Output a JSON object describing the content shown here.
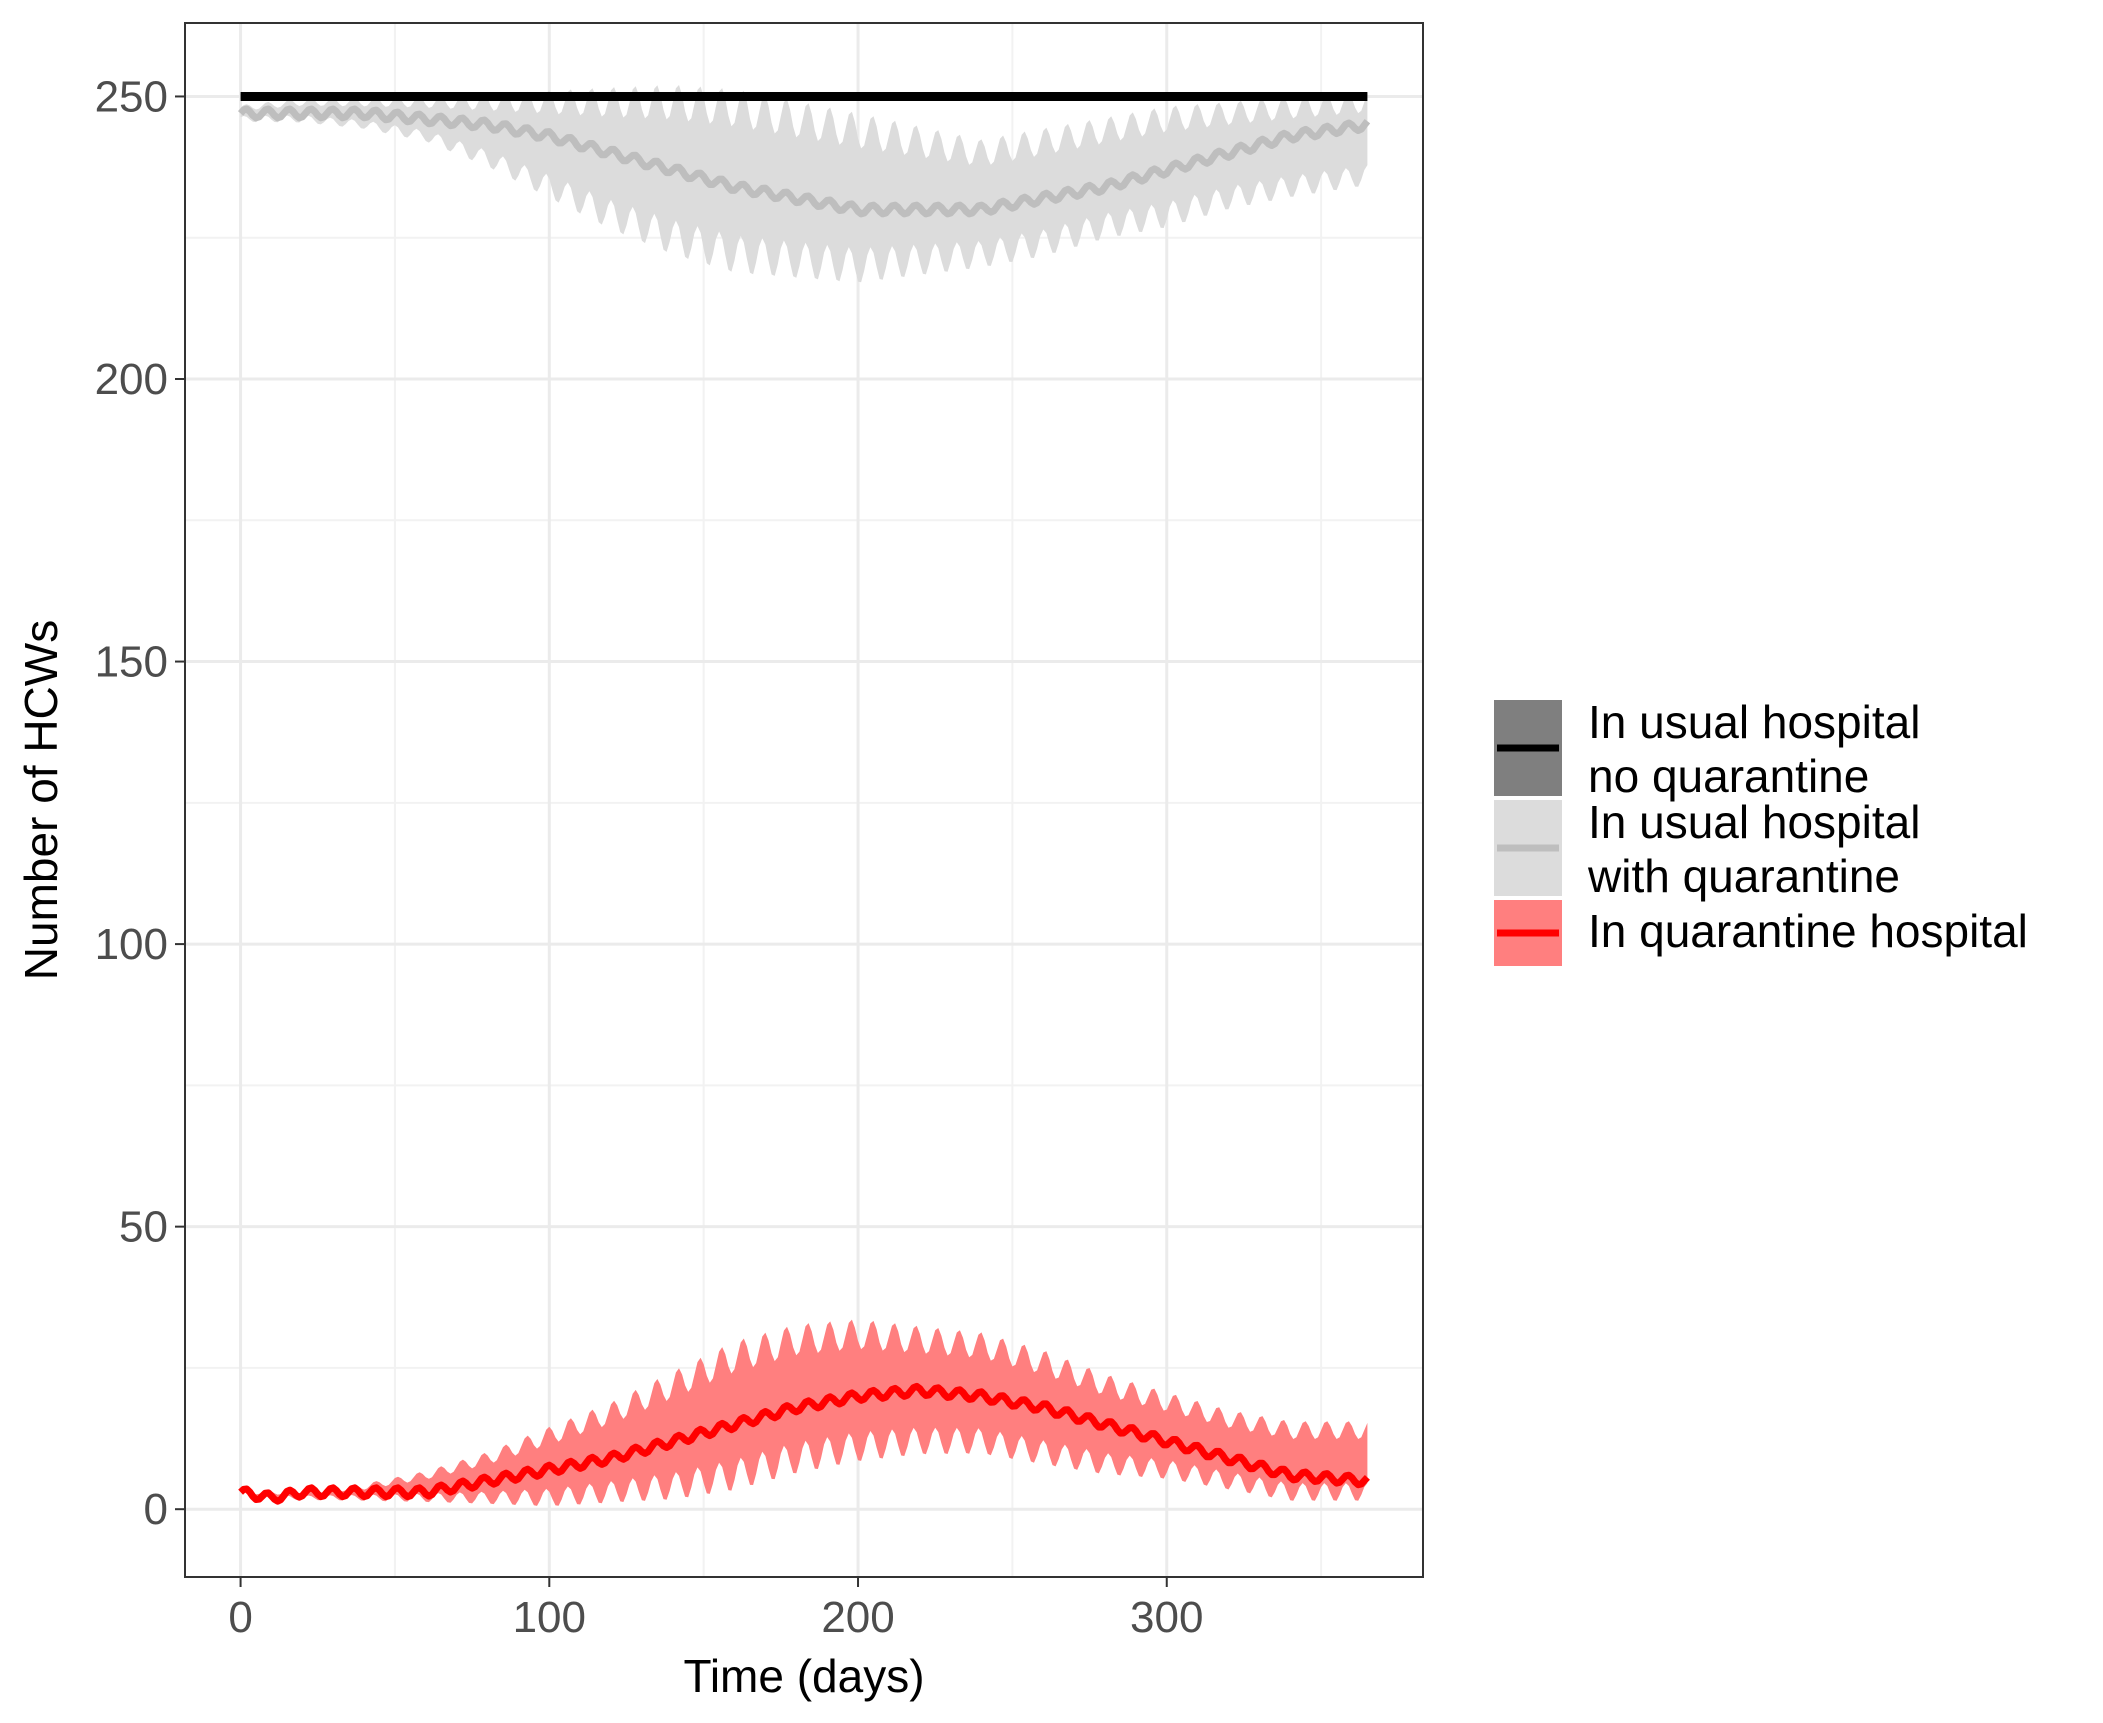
{
  "chart_data": {
    "type": "line",
    "title": "",
    "xlabel": "Time (days)",
    "ylabel": "Number of HCWs",
    "xlim": [
      -18,
      383
    ],
    "ylim": [
      -12,
      263
    ],
    "x_ticks": [
      0,
      100,
      200,
      300
    ],
    "y_ticks": [
      0,
      50,
      100,
      150,
      200,
      250
    ],
    "x_tick_labels": [
      "0",
      "100",
      "200",
      "300"
    ],
    "y_tick_labels": [
      "0",
      "50",
      "100",
      "150",
      "200",
      "250"
    ],
    "grid": true,
    "legend_position": "right",
    "series": [
      {
        "name": "In usual hospital\nno quarantine",
        "line_color": "#000000",
        "ribbon_color": "#7f7f7f",
        "x": [
          0,
          50,
          100,
          150,
          200,
          250,
          300,
          365
        ],
        "y": [
          250,
          250,
          250,
          250,
          250,
          250,
          250,
          250
        ],
        "lower": [
          249.5,
          249.5,
          249.5,
          249.5,
          249.5,
          249.5,
          249.5,
          249.5
        ],
        "upper": [
          250.5,
          250.5,
          250.5,
          250.5,
          250.5,
          250.5,
          250.5,
          250.5
        ]
      },
      {
        "name": "In usual hospital\nwith quarantine",
        "line_color": "#bebebe",
        "ribbon_color": "#dcdcdc",
        "x": [
          0,
          20,
          40,
          60,
          80,
          100,
          120,
          140,
          160,
          180,
          200,
          220,
          240,
          260,
          280,
          300,
          320,
          340,
          365
        ],
        "y": [
          247,
          247,
          247,
          246,
          245,
          243,
          240,
          237,
          234,
          232,
          230,
          230,
          230,
          232,
          234,
          237,
          240,
          243,
          245
        ],
        "lower": [
          246,
          246,
          245,
          243,
          239,
          234,
          229,
          225,
          222,
          221,
          220,
          221,
          222,
          224,
          227,
          229,
          232,
          234,
          236
        ],
        "upper": [
          248,
          249,
          249,
          249,
          249,
          249,
          249,
          249,
          248,
          246,
          244,
          242,
          240,
          242,
          244,
          246,
          247,
          248,
          249
        ]
      },
      {
        "name": "In quarantine hospital",
        "line_color": "#ff0000",
        "ribbon_color": "#ff7f7f",
        "x": [
          0,
          10,
          20,
          40,
          60,
          80,
          100,
          120,
          140,
          160,
          180,
          200,
          220,
          240,
          260,
          280,
          300,
          320,
          340,
          365
        ],
        "y": [
          3,
          2,
          3,
          3,
          3,
          5,
          7,
          9,
          12,
          15,
          18,
          20,
          21,
          20,
          18,
          15,
          12,
          9,
          6,
          5
        ],
        "lower": [
          3,
          2,
          2,
          2,
          2,
          2,
          2,
          3,
          4,
          6,
          9,
          11,
          12,
          12,
          10,
          8,
          7,
          5,
          3,
          3
        ],
        "upper": [
          3,
          3,
          3,
          4,
          6,
          9,
          13,
          17,
          22,
          27,
          30,
          31,
          30,
          29,
          26,
          22,
          19,
          16,
          14,
          14
        ]
      }
    ]
  }
}
